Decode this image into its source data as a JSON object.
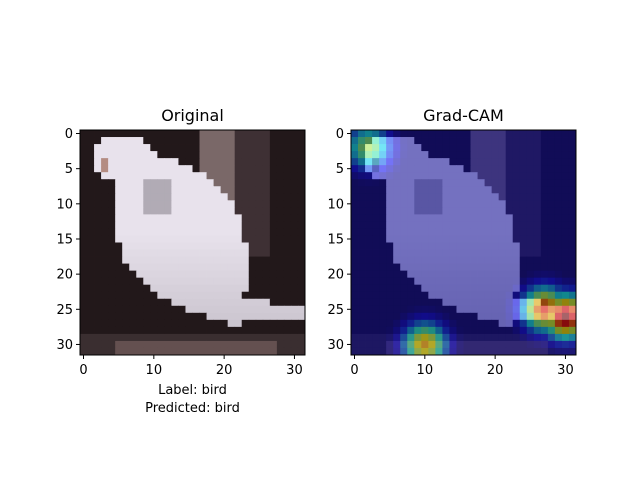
{
  "chart_data": [
    {
      "type": "heatmap",
      "title": "Original",
      "image": "32x32 RGB photo of a white bird perched, dark background",
      "xticks": [
        "0",
        "10",
        "20",
        "30"
      ],
      "yticks": [
        "0",
        "5",
        "10",
        "15",
        "20",
        "25",
        "30"
      ],
      "xlim": [
        -0.5,
        31.5
      ],
      "ylim": [
        31.5,
        -0.5
      ],
      "caption": [
        "Label: bird",
        "Predicted: bird"
      ]
    },
    {
      "type": "heatmap",
      "title": "Grad-CAM",
      "colormap": "jet",
      "overlay_alpha": 0.5,
      "xticks": [
        "0",
        "10",
        "20",
        "30"
      ],
      "yticks": [
        "0",
        "5",
        "10",
        "15",
        "20",
        "25",
        "30"
      ],
      "xlim": [
        -0.5,
        31.5
      ],
      "ylim": [
        31.5,
        -0.5
      ],
      "hotspots": [
        {
          "row": 26,
          "col": 30,
          "weight": 1.0
        },
        {
          "row": 25,
          "col": 27,
          "weight": 0.85
        },
        {
          "row": 30,
          "col": 10,
          "weight": 0.7
        },
        {
          "row": 2,
          "col": 2,
          "weight": 0.55
        }
      ]
    }
  ]
}
